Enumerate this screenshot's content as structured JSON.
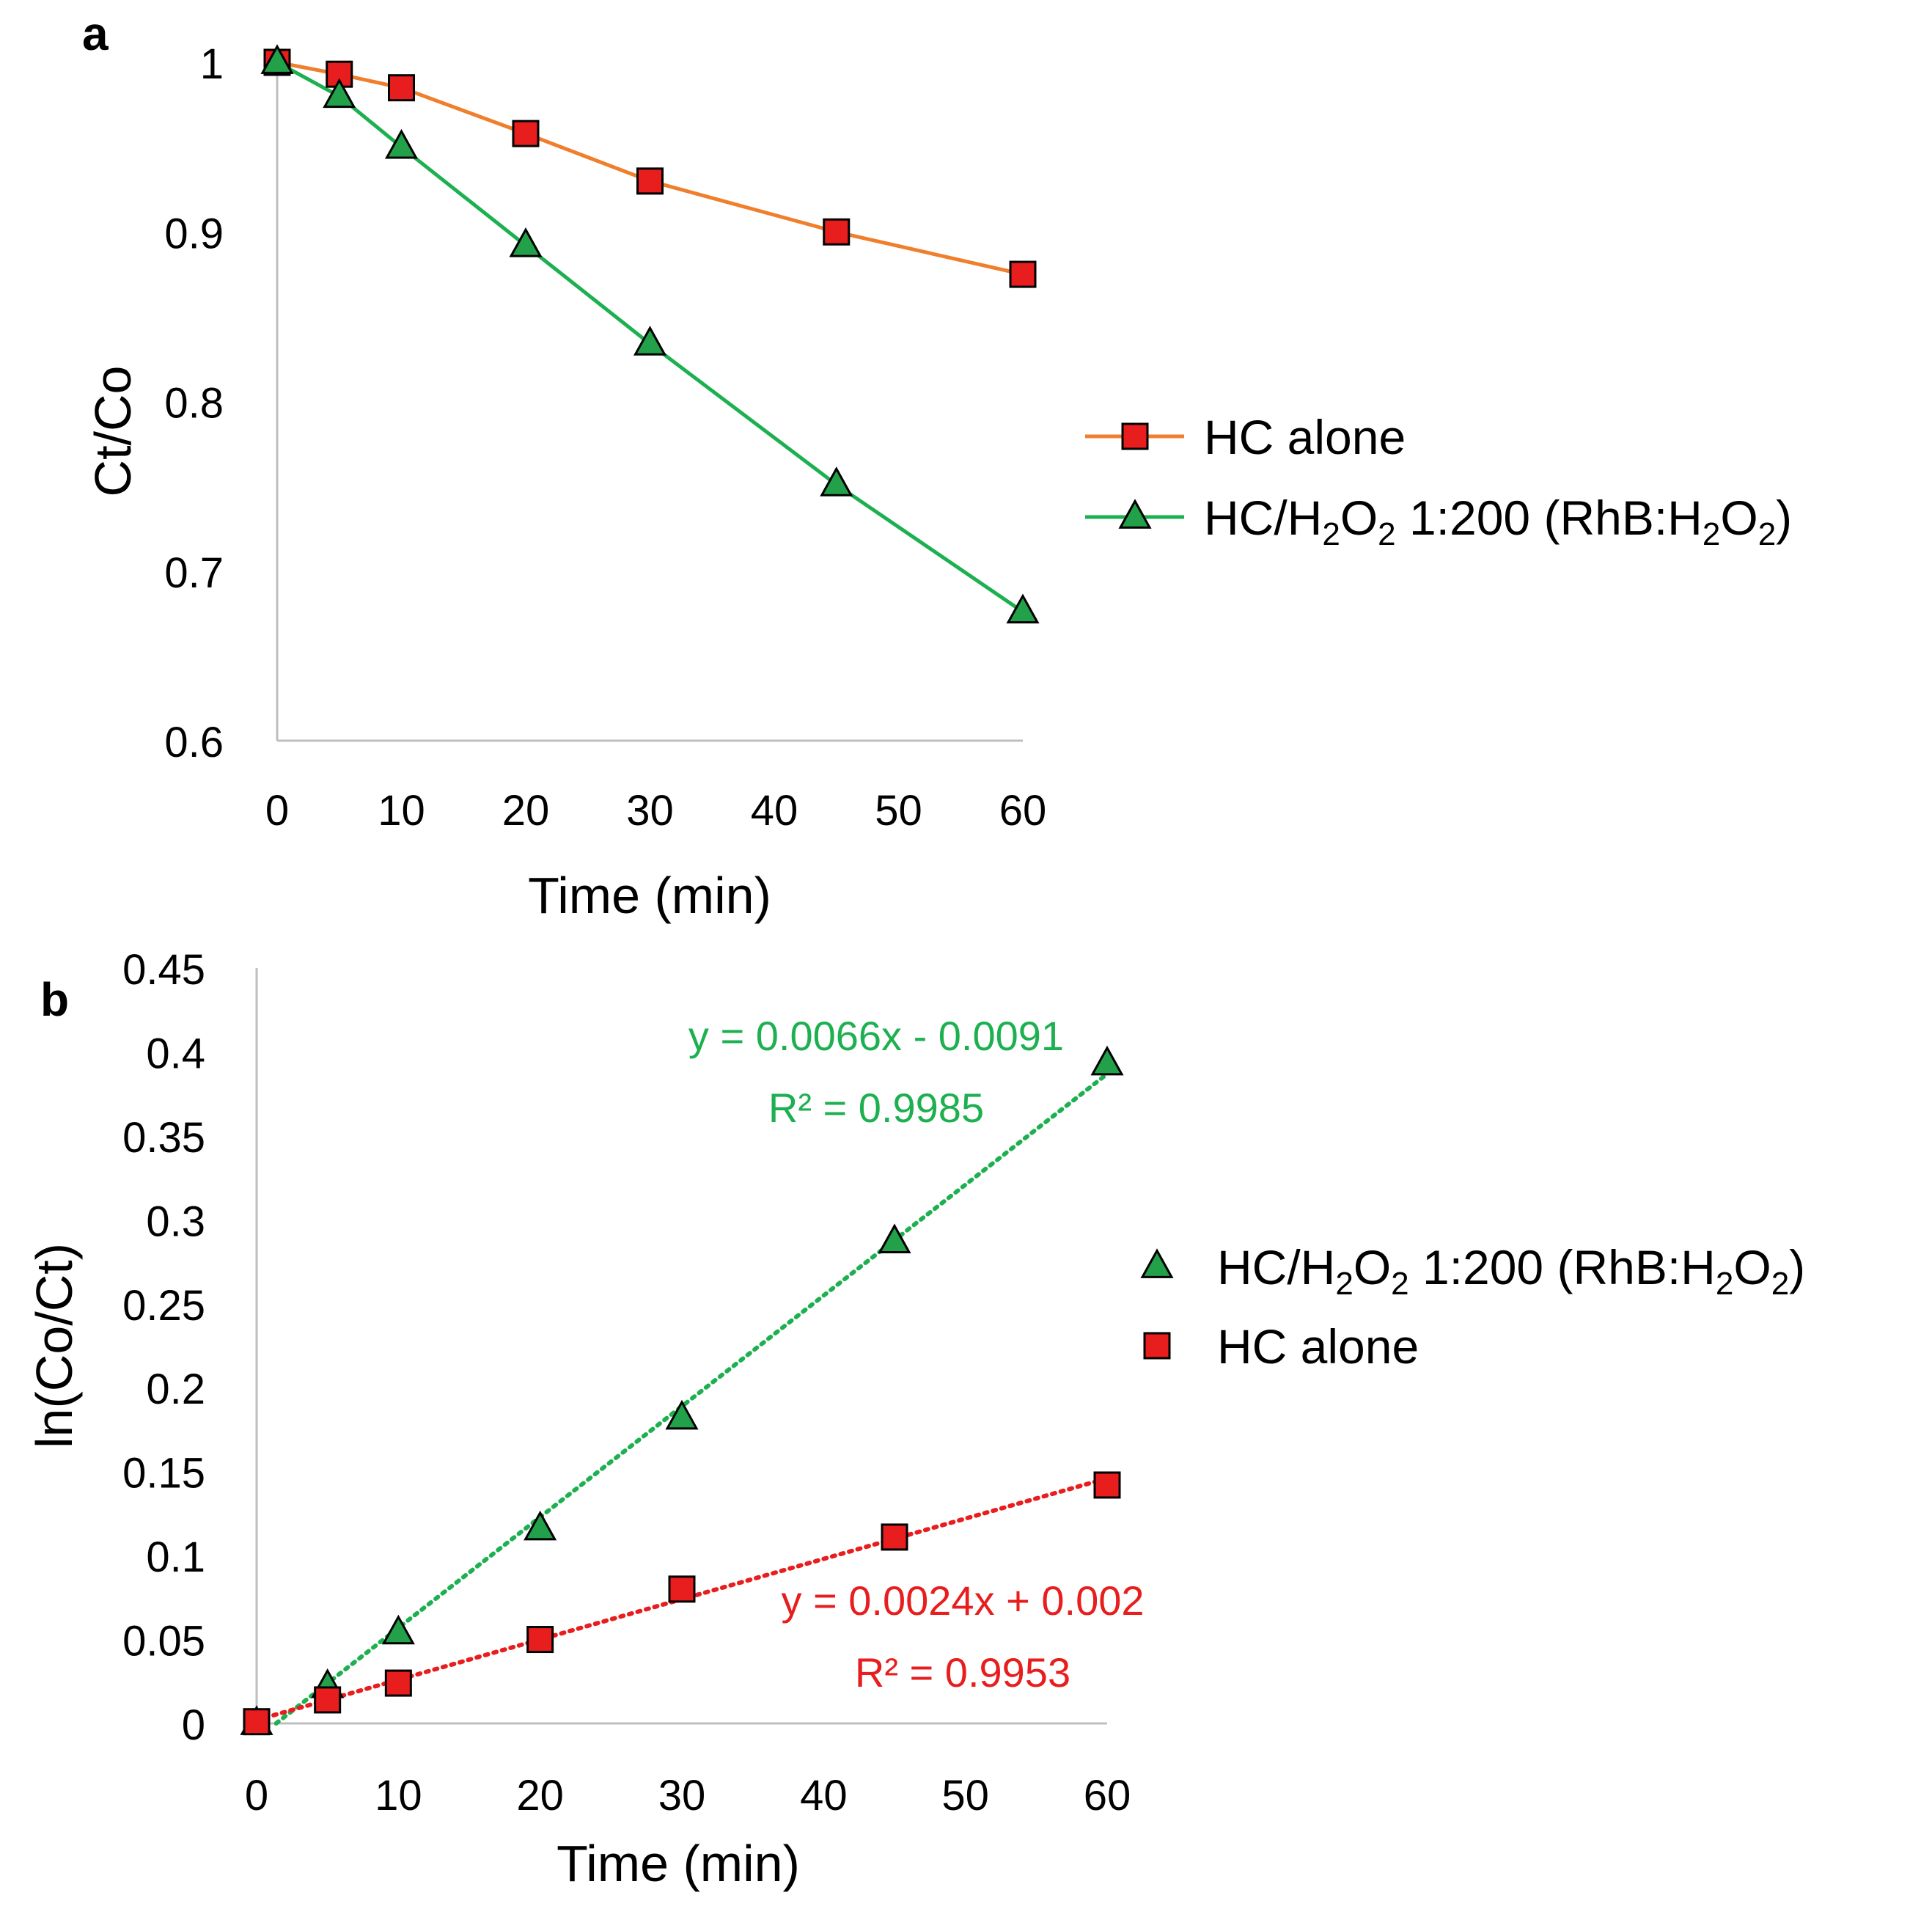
{
  "colors": {
    "hc_alone_line": "#F07F2D",
    "hc_alone_marker": "#E81D1D",
    "hc_h2o2": "#1DB050",
    "hc_h2o2_marker": "#22A04A",
    "fit_green": "#1DB050",
    "fit_red": "#E81D1D",
    "axis": "#BFBFBF",
    "text": "#000000"
  },
  "chart_data": [
    {
      "panel": "a",
      "type": "line",
      "xlabel": "Time (min)",
      "ylabel": "Ct/Co",
      "xlim": [
        0,
        60
      ],
      "ylim": [
        0.6,
        1.0
      ],
      "xticks": [
        "0",
        "10",
        "20",
        "30",
        "40",
        "50",
        "60"
      ],
      "yticks": [
        "1",
        "0.9",
        "0.8",
        "0.7",
        "0.6"
      ],
      "series": [
        {
          "name": "HC alone",
          "marker": "square",
          "x": [
            0,
            5,
            10,
            20,
            30,
            45,
            60
          ],
          "values": [
            1.0,
            0.993,
            0.985,
            0.958,
            0.93,
            0.9,
            0.875
          ]
        },
        {
          "name": "HC/H2O2 1:200 (RhB:H2O2)",
          "marker": "triangle",
          "x": [
            0,
            5,
            10,
            20,
            30,
            45,
            60
          ],
          "values": [
            1.0,
            0.98,
            0.95,
            0.892,
            0.834,
            0.751,
            0.676
          ]
        }
      ],
      "legend": [
        {
          "series": "HC alone",
          "parts": [
            {
              "t": "HC alone",
              "s": ""
            }
          ]
        },
        {
          "series": "HC/H2O2 1:200 (RhB:H2O2)",
          "parts": [
            {
              "t": "HC/H",
              "s": ""
            },
            {
              "t": "2",
              "s": "sub"
            },
            {
              "t": "O",
              "s": ""
            },
            {
              "t": "2",
              "s": "sub"
            },
            {
              "t": " 1:200 (RhB:H",
              "s": ""
            },
            {
              "t": "2",
              "s": "sub"
            },
            {
              "t": "O",
              "s": ""
            },
            {
              "t": "2",
              "s": "sub"
            },
            {
              "t": ")",
              "s": ""
            }
          ]
        }
      ],
      "legend_position": "right"
    },
    {
      "panel": "b",
      "type": "scatter",
      "xlabel": "Time (min)",
      "ylabel": "ln(Co/Ct)",
      "xlim": [
        0,
        60
      ],
      "ylim": [
        0,
        0.45
      ],
      "xticks": [
        "0",
        "10",
        "20",
        "30",
        "40",
        "50",
        "60"
      ],
      "yticks": [
        "0.45",
        "0.4",
        "0.35",
        "0.3",
        "0.25",
        "0.2",
        "0.15",
        "0.1",
        "0.05",
        "0"
      ],
      "series": [
        {
          "name": "HC/H2O2 1:200 (RhB:H2O2)",
          "marker": "triangle",
          "x": [
            0,
            5,
            10,
            20,
            30,
            45,
            60
          ],
          "values": [
            0.0,
            0.022,
            0.054,
            0.116,
            0.182,
            0.287,
            0.393
          ],
          "trendline": {
            "slope": 0.0066,
            "intercept": -0.0091,
            "equation": "y = 0.0066x - 0.0091",
            "r2": "R² = 0.9985"
          }
        },
        {
          "name": "HC alone",
          "marker": "square",
          "x": [
            0,
            5,
            10,
            20,
            30,
            45,
            60
          ],
          "values": [
            0.001,
            0.014,
            0.024,
            0.05,
            0.08,
            0.111,
            0.142
          ],
          "trendline": {
            "slope": 0.0024,
            "intercept": 0.002,
            "equation": "y = 0.0024x + 0.002",
            "r2": "R² = 0.9953"
          }
        }
      ],
      "legend": [
        {
          "series": "HC/H2O2 1:200 (RhB:H2O2)",
          "parts": [
            {
              "t": "HC/H",
              "s": ""
            },
            {
              "t": "2",
              "s": "sub"
            },
            {
              "t": "O",
              "s": ""
            },
            {
              "t": "2",
              "s": "sub"
            },
            {
              "t": " 1:200 (RhB:H",
              "s": ""
            },
            {
              "t": "2",
              "s": "sub"
            },
            {
              "t": "O",
              "s": ""
            },
            {
              "t": "2",
              "s": "sub"
            },
            {
              "t": ")",
              "s": ""
            }
          ]
        },
        {
          "series": "HC alone",
          "parts": [
            {
              "t": "HC alone",
              "s": ""
            }
          ]
        }
      ],
      "legend_position": "right"
    }
  ]
}
